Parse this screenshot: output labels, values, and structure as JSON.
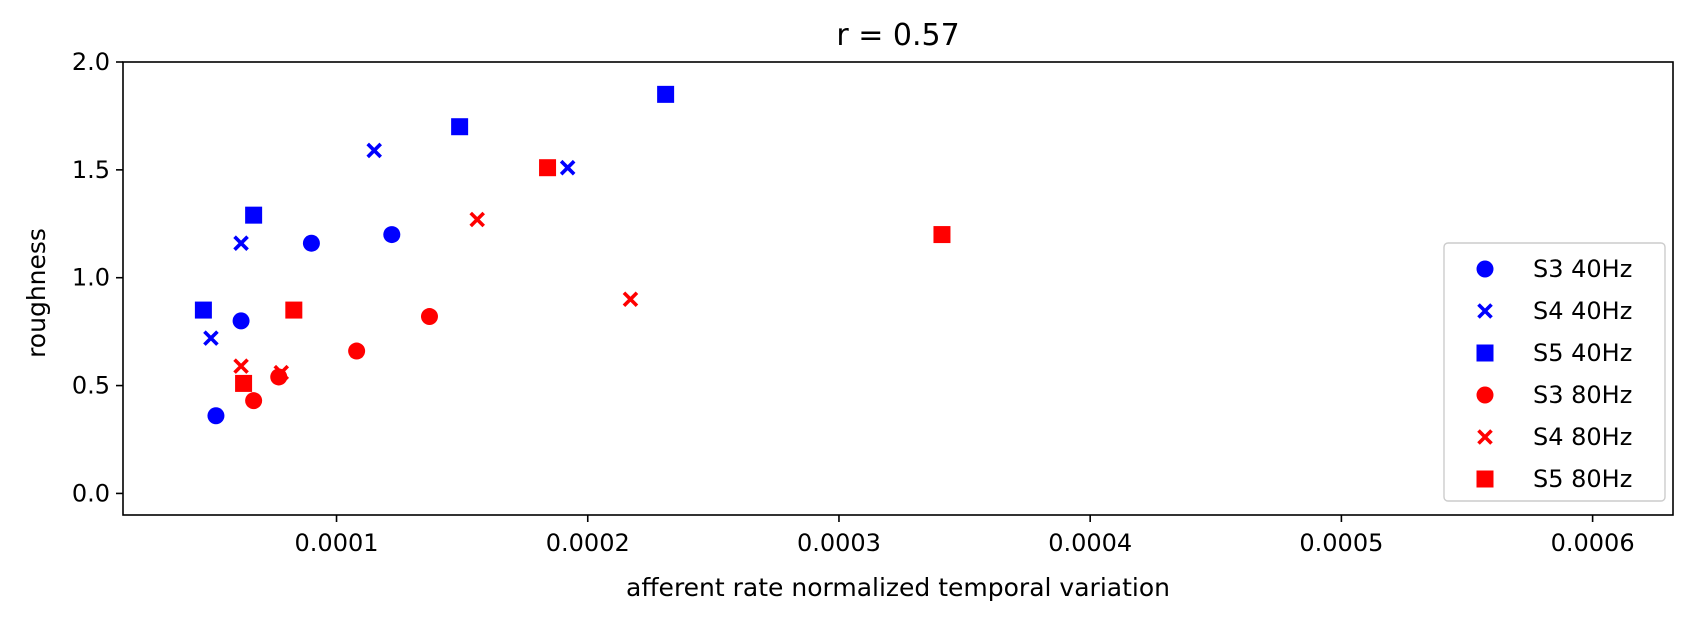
{
  "chart_data": {
    "type": "scatter",
    "title": "r = 0.57",
    "xlabel": "afferent rate normalized temporal variation",
    "ylabel": "roughness",
    "xlim": [
      1.5e-05,
      0.000632
    ],
    "ylim": [
      -0.1,
      2.0
    ],
    "xticks": [
      0.0001,
      0.0002,
      0.0003,
      0.0004,
      0.0005,
      0.0006
    ],
    "xtick_labels": [
      "0.0001",
      "0.0002",
      "0.0003",
      "0.0004",
      "0.0005",
      "0.0006"
    ],
    "yticks": [
      0.0,
      0.5,
      1.0,
      1.5,
      2.0
    ],
    "ytick_labels": [
      "0.0",
      "0.5",
      "1.0",
      "1.5",
      "2.0"
    ],
    "grid": false,
    "legend_position": "lower-right",
    "colors": {
      "blue": "#0000ff",
      "red": "#ff0000"
    },
    "series": [
      {
        "name": "S3 40Hz",
        "color": "#0000ff",
        "marker": "circle",
        "points": [
          [
            5.2e-05,
            0.36
          ],
          [
            6.2e-05,
            0.8
          ],
          [
            9e-05,
            1.16
          ],
          [
            0.000122,
            1.2
          ]
        ]
      },
      {
        "name": "S4 40Hz",
        "color": "#0000ff",
        "marker": "x",
        "points": [
          [
            5e-05,
            0.72
          ],
          [
            6.2e-05,
            1.16
          ],
          [
            0.000115,
            1.59
          ],
          [
            0.000192,
            1.51
          ]
        ]
      },
      {
        "name": "S5 40Hz",
        "color": "#0000ff",
        "marker": "square",
        "points": [
          [
            4.7e-05,
            0.85
          ],
          [
            6.7e-05,
            1.29
          ],
          [
            0.000149,
            1.7
          ],
          [
            0.000231,
            1.85
          ]
        ]
      },
      {
        "name": "S3 80Hz",
        "color": "#ff0000",
        "marker": "circle",
        "points": [
          [
            6.7e-05,
            0.43
          ],
          [
            7.7e-05,
            0.54
          ],
          [
            0.000108,
            0.66
          ],
          [
            0.000137,
            0.82
          ]
        ]
      },
      {
        "name": "S4 80Hz",
        "color": "#ff0000",
        "marker": "x",
        "points": [
          [
            6.2e-05,
            0.59
          ],
          [
            7.8e-05,
            0.56
          ],
          [
            0.000156,
            1.27
          ],
          [
            0.000217,
            0.9
          ]
        ]
      },
      {
        "name": "S5 80Hz",
        "color": "#ff0000",
        "marker": "square",
        "points": [
          [
            6.3e-05,
            0.51
          ],
          [
            8.3e-05,
            0.85
          ],
          [
            0.000184,
            1.51
          ],
          [
            0.000341,
            1.2
          ]
        ]
      }
    ]
  }
}
